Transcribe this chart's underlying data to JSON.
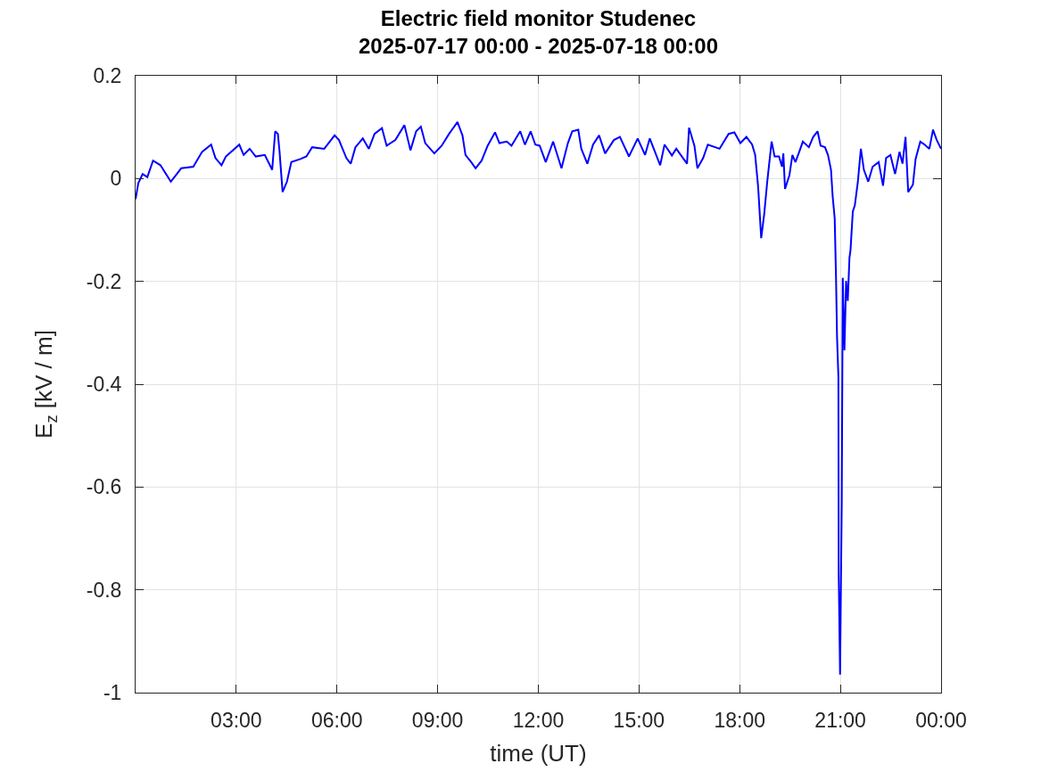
{
  "chart_data": {
    "type": "line",
    "title": "Electric field monitor Studenec",
    "subtitle": "2025-07-17 00:00 - 2025-07-18 00:00",
    "xlabel": "time (UT)",
    "ylabel": "E$_{z}$ [kV / m]",
    "x": [
      0,
      0.08,
      0.21,
      0.35,
      0.52,
      0.74,
      1.05,
      1.36,
      1.72,
      1.98,
      2.25,
      2.38,
      2.56,
      2.69,
      3.09,
      3.22,
      3.4,
      3.58,
      3.85,
      4.07,
      4.16,
      4.24,
      4.29,
      4.38,
      4.51,
      4.64,
      4.91,
      5.09,
      5.26,
      5.62,
      5.93,
      6.06,
      6.28,
      6.41,
      6.55,
      6.77,
      6.95,
      7.12,
      7.34,
      7.48,
      7.74,
      8.01,
      8.19,
      8.36,
      8.5,
      8.63,
      8.9,
      9.12,
      9.34,
      9.59,
      9.74,
      9.83,
      10,
      10.13,
      10.31,
      10.49,
      10.71,
      10.84,
      11.06,
      11.2,
      11.46,
      11.6,
      11.77,
      11.91,
      12.04,
      12.22,
      12.44,
      12.69,
      12.88,
      13.01,
      13.19,
      13.28,
      13.46,
      13.63,
      13.81,
      13.99,
      14.25,
      14.43,
      14.7,
      14.96,
      15.18,
      15.32,
      15.63,
      15.76,
      15.98,
      16.11,
      16.43,
      16.49,
      16.65,
      16.74,
      16.91,
      17.05,
      17.4,
      17.67,
      17.84,
      18.02,
      18.2,
      18.37,
      18.46,
      18.55,
      18.64,
      18.73,
      18.82,
      18.95,
      19.04,
      19.17,
      19.26,
      19.3,
      19.35,
      19.48,
      19.57,
      19.66,
      19.79,
      19.88,
      20.06,
      20.19,
      20.32,
      20.41,
      20.54,
      20.63,
      20.72,
      20.77,
      20.83,
      20.87,
      20.9,
      20.94,
      20.95,
      20.99,
      21.04,
      21.07,
      21.12,
      21.17,
      21.22,
      21.27,
      21.3,
      21.37,
      21.43,
      21.52,
      21.61,
      21.7,
      21.83,
      21.96,
      22.14,
      22.27,
      22.36,
      22.49,
      22.63,
      22.76,
      22.85,
      22.94,
      23.02,
      23.16,
      23.24,
      23.38,
      23.51,
      23.65,
      23.76,
      23.87,
      24
    ],
    "series": [
      {
        "color": "#0000ff",
        "values": [
          -0.04,
          -0.009,
          0.009,
          0.003,
          0.035,
          0.026,
          -0.006,
          0.02,
          0.023,
          0.052,
          0.066,
          0.04,
          0.026,
          0.043,
          0.066,
          0.046,
          0.058,
          0.043,
          0.046,
          0.017,
          0.092,
          0.087,
          0.052,
          -0.026,
          -0.006,
          0.032,
          0.038,
          0.043,
          0.061,
          0.058,
          0.084,
          0.075,
          0.04,
          0.029,
          0.061,
          0.078,
          0.058,
          0.087,
          0.098,
          0.064,
          0.075,
          0.104,
          0.055,
          0.092,
          0.101,
          0.069,
          0.049,
          0.064,
          0.087,
          0.11,
          0.084,
          0.046,
          0.032,
          0.02,
          0.035,
          0.064,
          0.09,
          0.069,
          0.072,
          0.064,
          0.092,
          0.066,
          0.092,
          0.066,
          0.064,
          0.032,
          0.072,
          0.02,
          0.069,
          0.092,
          0.095,
          0.058,
          0.029,
          0.066,
          0.084,
          0.049,
          0.075,
          0.081,
          0.043,
          0.078,
          0.046,
          0.078,
          0.026,
          0.066,
          0.045,
          0.058,
          0.029,
          0.099,
          0.064,
          0.02,
          0.04,
          0.066,
          0.058,
          0.087,
          0.09,
          0.069,
          0.081,
          0.066,
          0.046,
          -0.017,
          -0.116,
          -0.069,
          -0.006,
          0.072,
          0.043,
          0.043,
          0.023,
          0.049,
          -0.02,
          0.006,
          0.046,
          0.032,
          0.055,
          0.072,
          0.061,
          0.081,
          0.092,
          0.064,
          0.061,
          0.046,
          0.017,
          -0.035,
          -0.077,
          -0.193,
          -0.308,
          -0.385,
          -0.77,
          -0.965,
          -0.629,
          -0.193,
          -0.334,
          -0.199,
          -0.238,
          -0.154,
          -0.14,
          -0.064,
          -0.052,
          -0.006,
          0.058,
          0.017,
          -0.006,
          0.023,
          0.032,
          -0.014,
          0.04,
          0.046,
          0.009,
          0.052,
          0.029,
          0.081,
          -0.026,
          -0.012,
          0.038,
          0.072,
          0.066,
          0.058,
          0.095,
          0.075,
          0.058
        ]
      }
    ],
    "xlim": [
      0,
      24
    ],
    "xticks": [
      {
        "value": 3,
        "label": "03:00"
      },
      {
        "value": 6,
        "label": "06:00"
      },
      {
        "value": 9,
        "label": "09:00"
      },
      {
        "value": 12,
        "label": "12:00"
      },
      {
        "value": 15,
        "label": "15:00"
      },
      {
        "value": 18,
        "label": "18:00"
      },
      {
        "value": 21,
        "label": "21:00"
      },
      {
        "value": 24,
        "label": "00:00"
      }
    ],
    "ylim": [
      -1,
      0.2
    ],
    "yticks": [
      -1,
      -0.8,
      -0.6,
      -0.4,
      -0.2,
      0,
      0.2
    ],
    "grid": true
  }
}
